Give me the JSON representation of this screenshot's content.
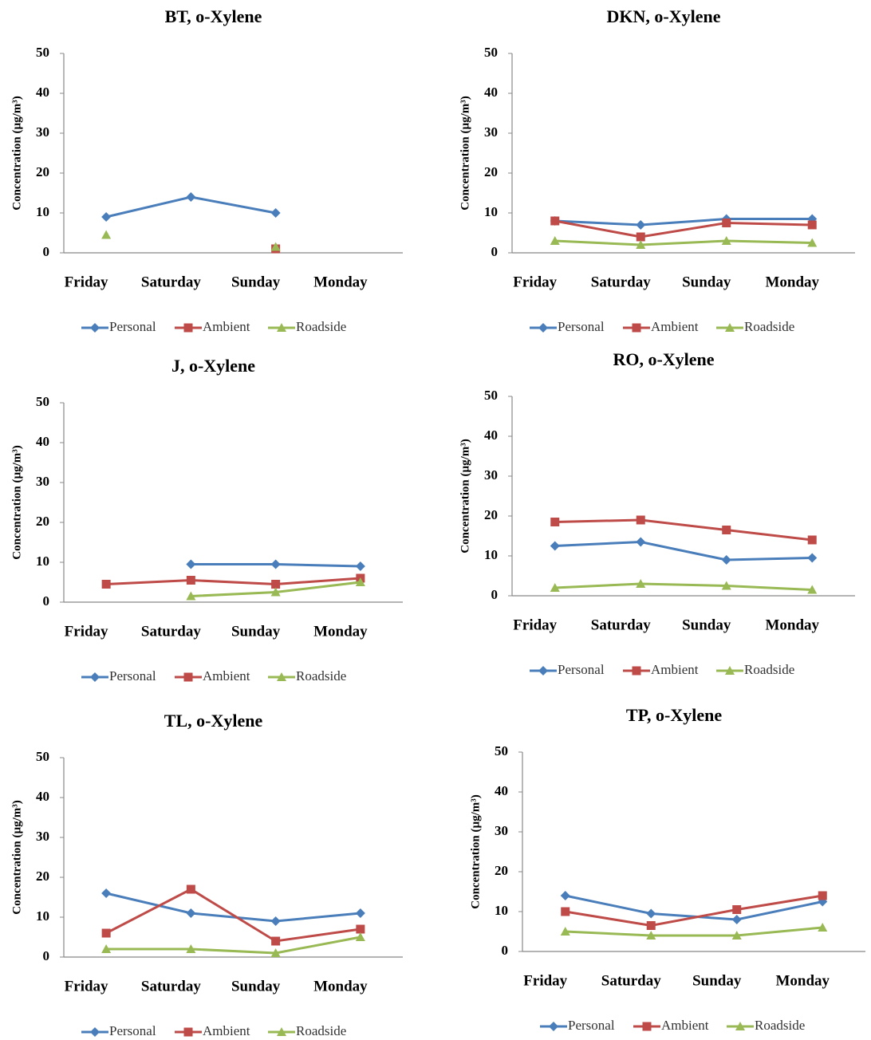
{
  "chart_data": [
    {
      "type": "line",
      "title": "BT, o-Xylene",
      "y_label": "Concentration (µg/m³)",
      "categories": [
        "Friday",
        "Saturday",
        "Sunday",
        "Monday"
      ],
      "series": [
        {
          "name": "Personal",
          "color": "#4a7ebb",
          "values": [
            9,
            14,
            10,
            null
          ]
        },
        {
          "name": "Ambient",
          "color": "#be4b48",
          "values": [
            null,
            null,
            1,
            null
          ]
        },
        {
          "name": "Roadside",
          "color": "#98b954",
          "values": [
            4.5,
            null,
            1.5,
            null
          ]
        }
      ],
      "ylim": [
        0,
        50
      ],
      "yticks": [
        0,
        10,
        20,
        30,
        40,
        50
      ],
      "legend": "bottom"
    },
    {
      "type": "line",
      "title": "DKN, o-Xylene",
      "y_label": "Concentration (µg/m³)",
      "categories": [
        "Friday",
        "Saturday",
        "Sunday",
        "Monday"
      ],
      "series": [
        {
          "name": "Personal",
          "color": "#4a7ebb",
          "values": [
            8,
            7,
            8.5,
            8.5
          ]
        },
        {
          "name": "Ambient",
          "color": "#be4b48",
          "values": [
            8,
            4,
            7.5,
            7
          ]
        },
        {
          "name": "Roadside",
          "color": "#98b954",
          "values": [
            3,
            2,
            3,
            2.5
          ]
        }
      ],
      "ylim": [
        0,
        50
      ],
      "yticks": [
        0,
        10,
        20,
        30,
        40,
        50
      ],
      "legend": "bottom"
    },
    {
      "type": "line",
      "title": "J, o-Xylene",
      "y_label": "Concentration (µg/m³)",
      "categories": [
        "Friday",
        "Saturday",
        "Sunday",
        "Monday"
      ],
      "series": [
        {
          "name": "Personal",
          "color": "#4a7ebb",
          "values": [
            null,
            9.5,
            9.5,
            9
          ]
        },
        {
          "name": "Ambient",
          "color": "#be4b48",
          "values": [
            4.5,
            5.5,
            4.5,
            6
          ]
        },
        {
          "name": "Roadside",
          "color": "#98b954",
          "values": [
            null,
            1.5,
            2.5,
            5
          ]
        }
      ],
      "ylim": [
        0,
        50
      ],
      "yticks": [
        0,
        10,
        20,
        30,
        40,
        50
      ],
      "legend": "bottom"
    },
    {
      "type": "line",
      "title": "RO, o-Xylene",
      "y_label": "Concentration (µg/m³)",
      "categories": [
        "Friday",
        "Saturday",
        "Sunday",
        "Monday"
      ],
      "series": [
        {
          "name": "Personal",
          "color": "#4a7ebb",
          "values": [
            12.5,
            13.5,
            9,
            9.5
          ]
        },
        {
          "name": "Ambient",
          "color": "#be4b48",
          "values": [
            18.5,
            19,
            16.5,
            14
          ]
        },
        {
          "name": "Roadside",
          "color": "#98b954",
          "values": [
            2,
            3,
            2.5,
            1.5
          ]
        }
      ],
      "ylim": [
        0,
        50
      ],
      "yticks": [
        0,
        10,
        20,
        30,
        40,
        50
      ],
      "legend": "bottom"
    },
    {
      "type": "line",
      "title": "TL, o-Xylene",
      "y_label": "Concentration (µg/m³)",
      "categories": [
        "Friday",
        "Saturday",
        "Sunday",
        "Monday"
      ],
      "series": [
        {
          "name": "Personal",
          "color": "#4a7ebb",
          "values": [
            16,
            11,
            9,
            11
          ]
        },
        {
          "name": "Ambient",
          "color": "#be4b48",
          "values": [
            6,
            17,
            4,
            7
          ]
        },
        {
          "name": "Roadside",
          "color": "#98b954",
          "values": [
            2,
            2,
            1,
            5
          ]
        }
      ],
      "ylim": [
        0,
        50
      ],
      "yticks": [
        0,
        10,
        20,
        30,
        40,
        50
      ],
      "legend": "bottom"
    },
    {
      "type": "line",
      "title": "TP, o-Xylene",
      "y_label": "Concentration (µg/m³)",
      "categories": [
        "Friday",
        "Saturday",
        "Sunday",
        "Monday"
      ],
      "series": [
        {
          "name": "Personal",
          "color": "#4a7ebb",
          "values": [
            14,
            9.5,
            8,
            12.5
          ]
        },
        {
          "name": "Ambient",
          "color": "#be4b48",
          "values": [
            10,
            6.5,
            10.5,
            14
          ]
        },
        {
          "name": "Roadside",
          "color": "#98b954",
          "values": [
            5,
            4,
            4,
            6
          ]
        }
      ],
      "ylim": [
        0,
        50
      ],
      "yticks": [
        0,
        10,
        20,
        30,
        40,
        50
      ],
      "legend": "bottom"
    }
  ]
}
